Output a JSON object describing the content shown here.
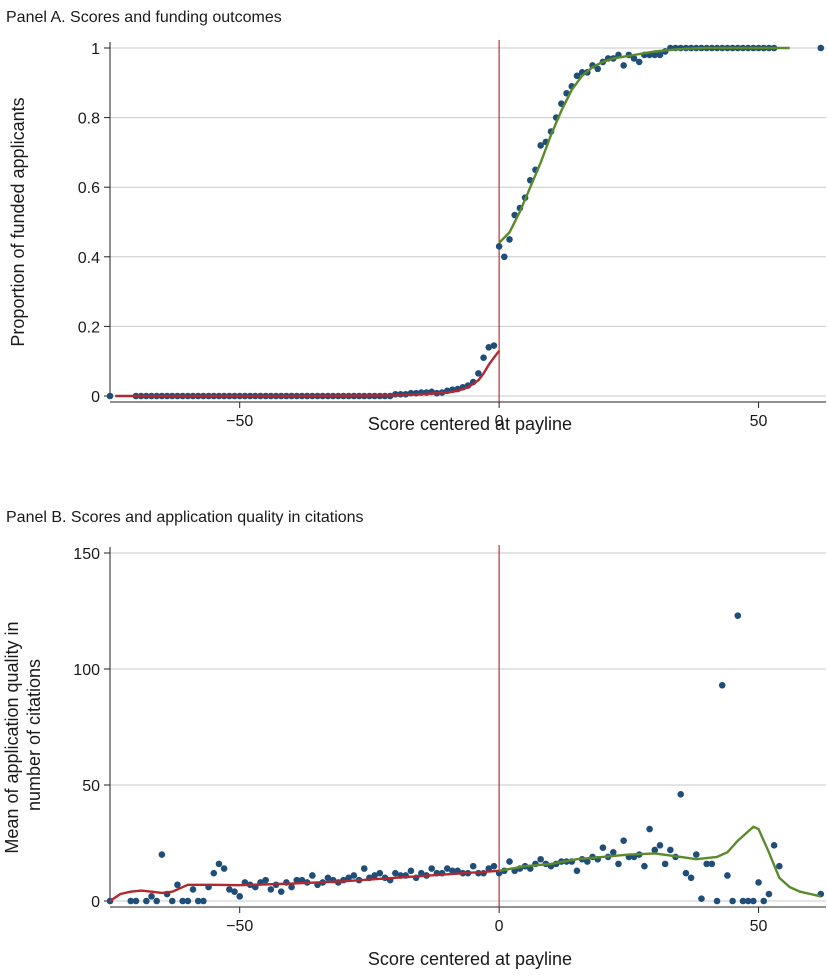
{
  "chart_data": [
    {
      "type": "scatter",
      "title": "Panel A. Scores and funding outcomes",
      "xlabel": "Score centered at payline",
      "ylabel": "Proportion of funded applicants",
      "xlim": [
        -75,
        63
      ],
      "ylim": [
        0,
        1
      ],
      "xticks": [
        "−50",
        "0",
        "50"
      ],
      "yticks": [
        "0",
        "0.2",
        "0.4",
        "0.6",
        "0.8",
        "1"
      ],
      "grid": "horizontal",
      "cutoff": 0,
      "series": [
        {
          "kind": "points",
          "x": [
            -75,
            -70,
            -69,
            -68,
            -67,
            -66,
            -65,
            -64,
            -63,
            -62,
            -61,
            -60,
            -59,
            -58,
            -57,
            -56,
            -55,
            -54,
            -53,
            -52,
            -51,
            -50,
            -49,
            -48,
            -47,
            -46,
            -45,
            -44,
            -43,
            -42,
            -41,
            -40,
            -39,
            -38,
            -37,
            -36,
            -35,
            -34,
            -33,
            -32,
            -31,
            -30,
            -29,
            -28,
            -27,
            -26,
            -25,
            -24,
            -23,
            -22,
            -21,
            -20,
            -19,
            -18,
            -17,
            -16,
            -15,
            -14,
            -13,
            -12,
            -11,
            -10,
            -9,
            -8,
            -7,
            -6,
            -5,
            -4,
            -3,
            -2,
            -1
          ],
          "y": [
            0,
            0,
            0,
            0,
            0,
            0,
            0,
            0,
            0,
            0,
            0,
            0,
            0,
            0,
            0,
            0,
            0,
            0,
            0,
            0,
            0,
            0,
            0,
            0,
            0,
            0,
            0,
            0,
            0,
            0,
            0,
            0,
            0,
            0,
            0,
            0,
            0,
            0,
            0,
            0,
            0,
            0,
            0,
            0,
            0,
            0,
            0,
            0,
            0,
            0,
            0,
            0.005,
            0.005,
            0.005,
            0.008,
            0.008,
            0.01,
            0.01,
            0.012,
            0.008,
            0.01,
            0.015,
            0.018,
            0.02,
            0.025,
            0.03,
            0.04,
            0.065,
            0.11,
            0.14,
            0.145
          ]
        },
        {
          "kind": "points",
          "x": [
            0,
            1,
            2,
            3,
            4,
            5,
            6,
            7,
            8,
            9,
            10,
            11,
            12,
            13,
            14,
            15,
            16,
            17,
            18,
            19,
            20,
            21,
            22,
            23,
            24,
            25,
            26,
            27,
            28,
            29,
            30,
            31,
            32,
            33,
            34,
            35,
            36,
            37,
            38,
            39,
            40,
            41,
            42,
            43,
            44,
            45,
            46,
            47,
            48,
            49,
            50,
            51,
            52,
            53,
            62
          ],
          "y": [
            0.43,
            0.4,
            0.45,
            0.52,
            0.54,
            0.57,
            0.62,
            0.65,
            0.72,
            0.73,
            0.76,
            0.8,
            0.84,
            0.87,
            0.89,
            0.92,
            0.93,
            0.93,
            0.95,
            0.94,
            0.96,
            0.97,
            0.97,
            0.98,
            0.95,
            0.98,
            0.97,
            0.96,
            0.98,
            0.98,
            0.98,
            0.98,
            0.99,
            1,
            1,
            1,
            1,
            1,
            1,
            1,
            1,
            1,
            1,
            1,
            1,
            1,
            1,
            1,
            1,
            1,
            1,
            1,
            1,
            1,
            1
          ]
        },
        {
          "kind": "fit-left",
          "x": [
            -74,
            -60,
            -40,
            -20,
            -14,
            -10,
            -8,
            -6,
            -4,
            -3,
            -2,
            -1,
            0
          ],
          "y": [
            0,
            0,
            0,
            0.002,
            0.006,
            0.01,
            0.015,
            0.025,
            0.045,
            0.065,
            0.09,
            0.11,
            0.13
          ]
        },
        {
          "kind": "fit-right",
          "x": [
            0,
            2,
            4,
            6,
            8,
            10,
            12,
            14,
            16,
            18,
            20,
            22,
            24,
            26,
            28,
            30,
            32,
            34,
            36,
            40,
            45,
            50,
            56
          ],
          "y": [
            0.44,
            0.47,
            0.53,
            0.6,
            0.67,
            0.75,
            0.82,
            0.88,
            0.92,
            0.945,
            0.96,
            0.97,
            0.975,
            0.98,
            0.985,
            0.99,
            0.993,
            0.996,
            0.998,
            1,
            1,
            1,
            1
          ]
        }
      ]
    },
    {
      "type": "scatter",
      "title": "Panel B. Scores and application quality in citations",
      "xlabel": "Score centered at payline",
      "ylabel_lines": [
        "Mean of application quality in",
        "number of citations"
      ],
      "xlim": [
        -75,
        63
      ],
      "ylim": [
        0,
        150
      ],
      "xticks": [
        "−50",
        "0",
        "50"
      ],
      "yticks": [
        "0",
        "50",
        "100",
        "150"
      ],
      "grid": "horizontal",
      "cutoff": 0,
      "series": [
        {
          "kind": "points",
          "x": [
            -75,
            -71,
            -70,
            -68,
            -67,
            -66,
            -65,
            -64,
            -63,
            -62,
            -61,
            -60,
            -59,
            -58,
            -57,
            -56,
            -55,
            -54,
            -53,
            -52,
            -51,
            -50,
            -49,
            -48,
            -47,
            -46,
            -45,
            -44,
            -43,
            -42,
            -41,
            -40,
            -39,
            -38,
            -37,
            -36,
            -35,
            -34,
            -33,
            -32,
            -31,
            -30,
            -29,
            -28,
            -27,
            -26,
            -25,
            -24,
            -23,
            -22,
            -21,
            -20,
            -19,
            -18,
            -17,
            -16,
            -15,
            -14,
            -13,
            -12,
            -11,
            -10,
            -9,
            -8,
            -7,
            -6,
            -5,
            -4,
            -3,
            -2,
            -1
          ],
          "y": [
            0,
            0,
            0,
            0,
            2,
            0,
            20,
            3,
            0,
            7,
            0,
            0,
            5,
            0,
            0,
            6,
            12,
            16,
            14,
            5,
            4,
            2,
            8,
            7,
            6,
            8,
            9,
            5,
            7,
            4,
            8,
            6,
            9,
            9,
            8,
            11,
            7,
            8,
            10,
            9,
            8,
            9,
            10,
            11,
            9,
            14,
            10,
            11,
            12,
            10,
            9,
            12,
            11,
            11,
            13,
            10,
            12,
            11,
            14,
            12,
            12,
            14,
            13,
            13,
            12,
            12,
            15,
            12,
            12,
            14,
            15
          ]
        },
        {
          "kind": "points",
          "x": [
            0,
            1,
            2,
            3,
            4,
            5,
            6,
            7,
            8,
            9,
            10,
            11,
            12,
            13,
            14,
            15,
            16,
            17,
            18,
            19,
            20,
            21,
            22,
            23,
            24,
            25,
            26,
            27,
            28,
            29,
            30,
            31,
            32,
            33,
            34,
            35,
            36,
            37,
            38,
            39,
            40,
            41,
            42,
            43,
            44,
            45,
            46,
            47,
            48,
            49,
            50,
            51,
            52,
            53,
            54,
            62
          ],
          "y": [
            12,
            13,
            17,
            13,
            14,
            15,
            14,
            16,
            18,
            16,
            15,
            16,
            17,
            17,
            17,
            13,
            18,
            17,
            19,
            18,
            23,
            19,
            21,
            16,
            26,
            19,
            19,
            20,
            15,
            31,
            22,
            24,
            16,
            22,
            19,
            46,
            12,
            10,
            20,
            1,
            16,
            16,
            0,
            93,
            11,
            0,
            123,
            0,
            0,
            0,
            8,
            0,
            3,
            24,
            15,
            3
          ]
        },
        {
          "kind": "fit-left",
          "x": [
            -75,
            -73,
            -71,
            -69,
            -67,
            -65,
            -63,
            -60,
            -55,
            -50,
            -40,
            -30,
            -20,
            -10,
            0
          ],
          "y": [
            0,
            3,
            4,
            4.5,
            4,
            3.5,
            4,
            7,
            7,
            6.8,
            7.5,
            8.5,
            10,
            11.5,
            13
          ]
        },
        {
          "kind": "fit-right",
          "x": [
            0,
            5,
            10,
            15,
            20,
            25,
            30,
            35,
            38,
            42,
            44,
            46,
            48,
            49,
            50,
            51,
            52,
            54,
            56,
            58,
            60,
            62
          ],
          "y": [
            13,
            15,
            16,
            18,
            19,
            20,
            20.5,
            19,
            18,
            19,
            21,
            26,
            30,
            32,
            31,
            26,
            21,
            10,
            6,
            4,
            3,
            2
          ]
        }
      ]
    }
  ]
}
